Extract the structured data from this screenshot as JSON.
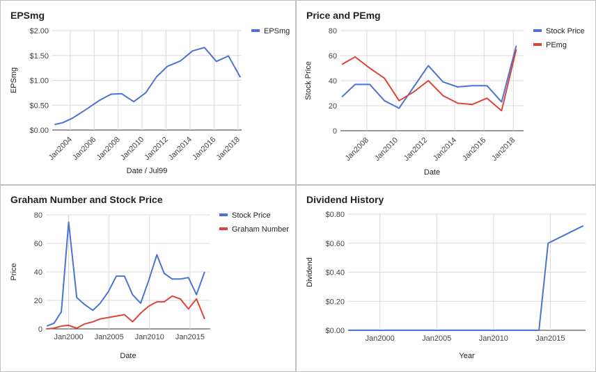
{
  "chart_data": [
    {
      "type": "line",
      "title": "EPSmg",
      "xlabel": "Date / Jul99",
      "ylabel": "EPSmg",
      "ylim": [
        0,
        2
      ],
      "xlim": [
        2002.5,
        2018.3
      ],
      "yticks": [
        "$0.00",
        "$0.50",
        "$1.00",
        "$1.50",
        "$2.00"
      ],
      "ytick_values": [
        0,
        0.5,
        1,
        1.5,
        2
      ],
      "xticks": [
        "Jan2004",
        "Jan2006",
        "Jan2008",
        "Jan2010",
        "Jan2012",
        "Jan2014",
        "Jan2016",
        "Jan2018"
      ],
      "xtick_values": [
        2004,
        2006,
        2008,
        2010,
        2012,
        2014,
        2016,
        2018
      ],
      "grid": true,
      "legend": "top-right",
      "series": [
        {
          "name": "EPSmg",
          "color": "#4a73d4",
          "x": [
            2002.7,
            2003.4,
            2004.2,
            2005.3,
            2006.4,
            2007.4,
            2008.3,
            2009.3,
            2010.3,
            2011.2,
            2012.1,
            2013.2,
            2014.2,
            2015.2,
            2016.2,
            2017.2,
            2018.2
          ],
          "y": [
            0.11,
            0.15,
            0.24,
            0.41,
            0.59,
            0.72,
            0.73,
            0.57,
            0.75,
            1.07,
            1.28,
            1.39,
            1.59,
            1.66,
            1.38,
            1.49,
            1.06
          ]
        }
      ]
    },
    {
      "type": "line",
      "title": "Price and PEmg",
      "xlabel": "Date",
      "ylabel": "Stock Price",
      "ylim": [
        0,
        80
      ],
      "xlim": [
        2006.2,
        2018.7
      ],
      "yticks": [
        "0",
        "20",
        "40",
        "60",
        "80"
      ],
      "ytick_values": [
        0,
        20,
        40,
        60,
        80
      ],
      "xticks": [
        "Jan2008",
        "Jan2010",
        "Jan2012",
        "Jan2014",
        "Jan2016",
        "Jan2018"
      ],
      "xtick_values": [
        2008,
        2010,
        2012,
        2014,
        2016,
        2018
      ],
      "grid": true,
      "legend": "top-right",
      "series": [
        {
          "name": "Stock Price",
          "color": "#4a73d4",
          "x": [
            2006.3,
            2007.2,
            2008.2,
            2009.2,
            2010.2,
            2011.2,
            2012.2,
            2013.2,
            2014.2,
            2015.2,
            2016.2,
            2017.2,
            2018.2
          ],
          "y": [
            27,
            37,
            37,
            24,
            18,
            35,
            52,
            39,
            35,
            36,
            36,
            23,
            68
          ]
        },
        {
          "name": "PEmg",
          "color": "#db4437",
          "x": [
            2006.3,
            2007.2,
            2008.2,
            2009.2,
            2010.2,
            2011.2,
            2012.2,
            2013.2,
            2014.2,
            2015.2,
            2016.2,
            2017.2,
            2018.2
          ],
          "y": [
            53,
            59,
            50,
            42,
            24,
            31,
            40,
            28,
            22,
            21,
            26,
            16,
            65
          ]
        }
      ]
    },
    {
      "type": "line",
      "title": "Graham Number and Stock Price",
      "xlabel": "Date",
      "ylabel": "Price",
      "ylim": [
        0,
        80
      ],
      "xlim": [
        1997.2,
        2017.5
      ],
      "yticks": [
        "0",
        "20",
        "40",
        "60",
        "80"
      ],
      "ytick_values": [
        0,
        20,
        40,
        60,
        80
      ],
      "xticks": [
        "Jan2000",
        "Jan2005",
        "Jan2010",
        "Jan2015"
      ],
      "xtick_values": [
        2000,
        2005,
        2010,
        2015
      ],
      "grid": true,
      "legend": "top-right",
      "series": [
        {
          "name": "Stock Price",
          "color": "#4a73d4",
          "x": [
            1997.3,
            1998.2,
            1999.1,
            2000.0,
            2001.0,
            2002.0,
            2003.0,
            2003.9,
            2004.9,
            2005.9,
            2006.9,
            2007.9,
            2008.9,
            2009.9,
            2010.9,
            2011.8,
            2012.8,
            2013.8,
            2014.8,
            2015.8,
            2016.8
          ],
          "y": [
            2,
            4,
            12,
            75,
            22,
            17,
            13,
            18,
            26,
            37,
            37,
            24,
            18,
            34,
            52,
            39,
            35,
            35,
            36,
            24,
            40
          ]
        },
        {
          "name": "Graham Number",
          "color": "#db4437",
          "x": [
            1997.3,
            1998.2,
            1999.1,
            2000.0,
            2001.0,
            2002.0,
            2003.0,
            2003.9,
            2004.9,
            2005.9,
            2006.9,
            2007.9,
            2008.9,
            2009.9,
            2010.9,
            2011.8,
            2012.8,
            2013.8,
            2014.8,
            2015.8,
            2016.8
          ],
          "y": [
            0,
            0.5,
            2,
            2.5,
            0.5,
            3.5,
            5,
            7,
            8,
            9,
            10,
            5,
            11,
            16,
            19,
            19,
            23,
            21,
            14,
            21,
            7
          ]
        }
      ]
    },
    {
      "type": "line",
      "title": "Dividend History",
      "xlabel": "Year",
      "ylabel": "Dividend",
      "ylim": [
        0,
        0.8
      ],
      "xlim": [
        1997.2,
        2018.1
      ],
      "yticks": [
        "$0.00",
        "$0.20",
        "$0.40",
        "$0.60",
        "$0.80"
      ],
      "ytick_values": [
        0,
        0.2,
        0.4,
        0.6,
        0.8
      ],
      "xticks": [
        "Jan2000",
        "Jan2005",
        "Jan2010",
        "Jan2015"
      ],
      "xtick_values": [
        2000,
        2005,
        2010,
        2015
      ],
      "grid": true,
      "legend": "none",
      "series": [
        {
          "name": "Dividend",
          "color": "#4a73d4",
          "x": [
            1997.2,
            2000,
            2005,
            2010,
            2014.0,
            2014.8,
            2017.9
          ],
          "y": [
            0,
            0,
            0,
            0,
            0,
            0.6,
            0.72
          ]
        }
      ]
    }
  ]
}
